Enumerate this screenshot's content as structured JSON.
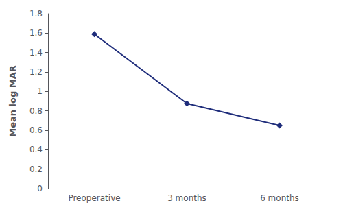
{
  "chart_data": {
    "type": "line",
    "ylabel": "Mean log MAR",
    "categories": [
      "Preoperative",
      "3 months",
      "6 months"
    ],
    "values": [
      1.59,
      0.875,
      0.65
    ],
    "color": "#1F2D7B",
    "marker": "diamond",
    "ylim": [
      0,
      1.8
    ],
    "yticks": [
      0,
      0.2,
      0.4,
      0.6,
      0.8,
      1.0,
      1.2,
      1.4,
      1.6,
      1.8
    ],
    "grid": false
  }
}
